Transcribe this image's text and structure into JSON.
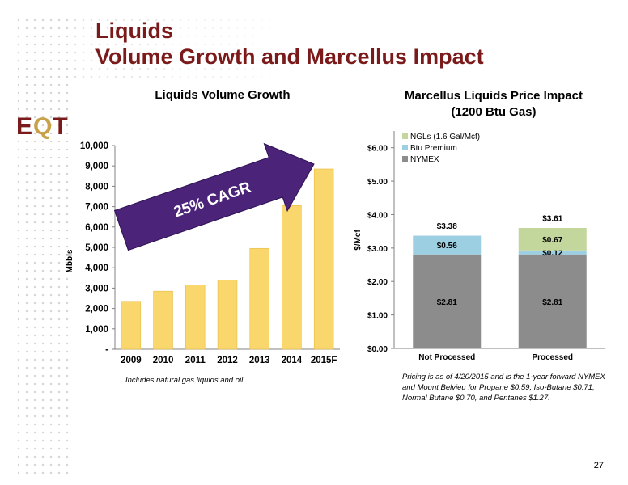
{
  "slide": {
    "title_line1": "Liquids",
    "title_line2": "Volume Growth and Marcellus Impact",
    "logo_text": "EQT",
    "page_number": "27",
    "accent_color": "#7b1a1a"
  },
  "chart_data": [
    {
      "type": "bar",
      "title": "Liquids Volume Growth",
      "ylabel": "Mbbls",
      "categories": [
        "2009",
        "2010",
        "2011",
        "2012",
        "2013",
        "2014",
        "2015F"
      ],
      "values": [
        2350,
        2850,
        3150,
        3400,
        4950,
        7050,
        8850
      ],
      "ylim": [
        0,
        10000
      ],
      "yticks": [
        0,
        1000,
        2000,
        3000,
        4000,
        5000,
        6000,
        7000,
        8000,
        9000,
        10000
      ],
      "ytick_labels": [
        "-",
        "1,000",
        "2,000",
        "3,000",
        "4,000",
        "5,000",
        "6,000",
        "7,000",
        "8,000",
        "9,000",
        "10,000"
      ],
      "bar_color": "#fad76c",
      "annotation": "25% CAGR",
      "arrow_color": "#4b2379",
      "footnote": "Includes natural gas liquids and oil",
      "grid": false
    },
    {
      "type": "bar",
      "stacked": true,
      "title_line1": "Marcellus Liquids Price Impact",
      "title_line2": "(1200 Btu Gas)",
      "ylabel": "$/Mcf",
      "categories": [
        "Not Processed",
        "Processed"
      ],
      "ylim": [
        0,
        6.5
      ],
      "yticks": [
        0,
        1,
        2,
        3,
        4,
        5,
        6
      ],
      "ytick_labels": [
        "$0.00",
        "$1.00",
        "$2.00",
        "$3.00",
        "$4.00",
        "$5.00",
        "$6.00"
      ],
      "legend_position": "top-left",
      "series": [
        {
          "name": "NYMEX",
          "values": [
            2.81,
            2.81
          ],
          "labels": [
            "$2.81",
            "$2.81"
          ],
          "color": "#8c8c8c"
        },
        {
          "name": "Btu Premium",
          "values": [
            0.56,
            0.12
          ],
          "labels": [
            "$0.56",
            "$0.12"
          ],
          "color": "#9dcfe3"
        },
        {
          "name": "NGLs (1.6 Gal/Mcf)",
          "values": [
            0,
            0.67
          ],
          "labels": [
            "",
            "$0.67"
          ],
          "color": "#c3d69b"
        }
      ],
      "totals": [
        3.38,
        3.61
      ],
      "total_labels": [
        "$3.38",
        "$3.61"
      ],
      "footnote": [
        "Pricing is as of 4/20/2015 and is the 1-year forward NYMEX",
        "and Mount Belvieu for Propane $0.59, Iso-Butane $0.71,",
        "Normal Butane $0.70, and Pentanes $1.27."
      ],
      "grid": false
    }
  ]
}
